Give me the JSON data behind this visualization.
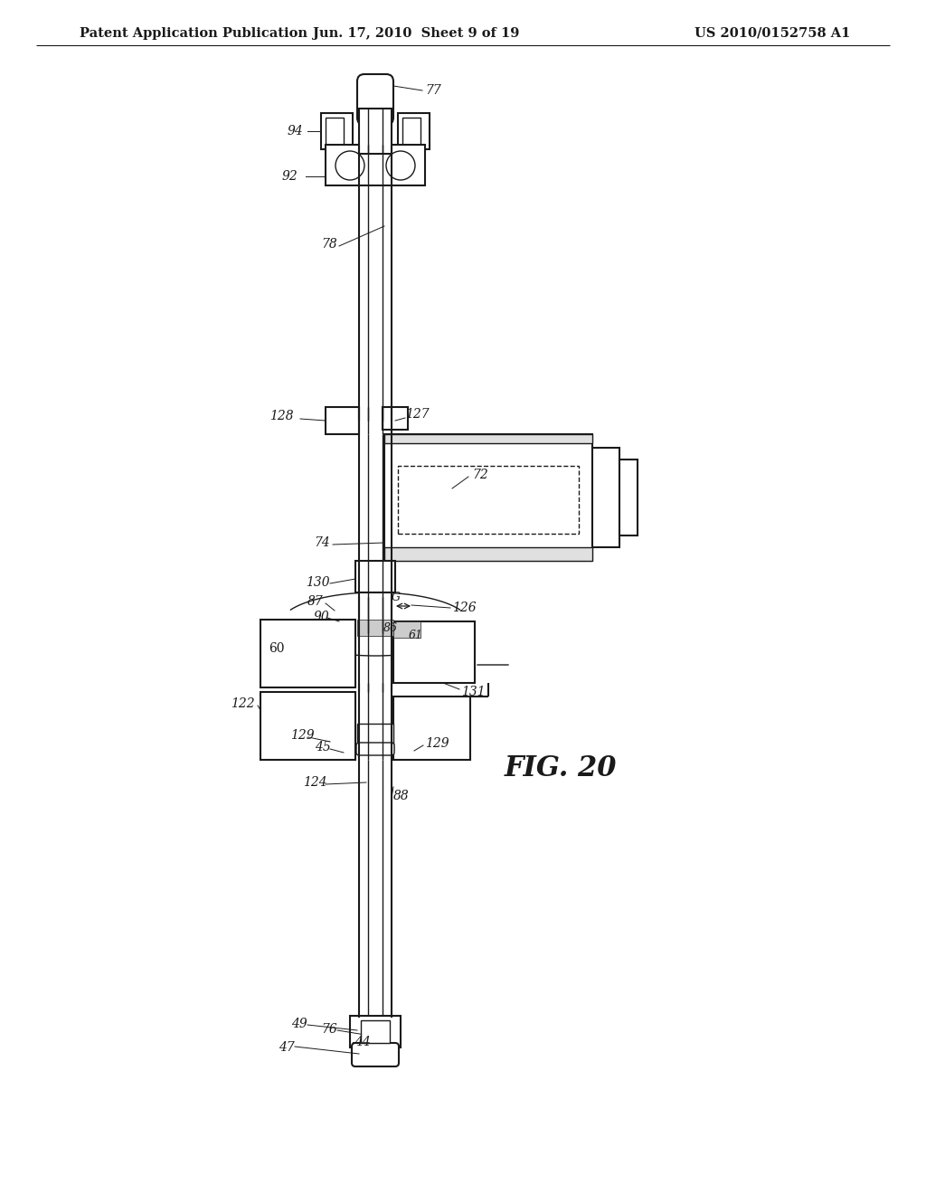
{
  "title_left": "Patent Application Publication",
  "title_center": "Jun. 17, 2010  Sheet 9 of 19",
  "title_right": "US 2010/0152758 A1",
  "fig_label": "FIG. 20",
  "bg_color": "#ffffff",
  "line_color": "#1a1a1a",
  "header_fontsize": 10.5,
  "fig_label_fontsize": 22
}
